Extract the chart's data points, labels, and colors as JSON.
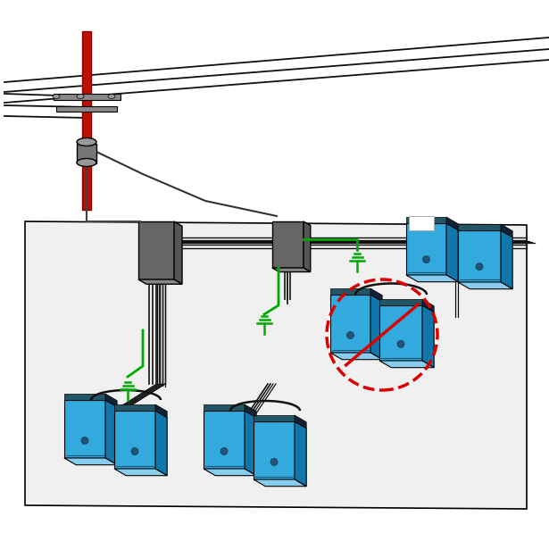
{
  "bg_color": "#ffffff",
  "pole_color": "#bb1100",
  "box_gray": "#666666",
  "box_gray_top": "#888888",
  "box_gray_side": "#555555",
  "chassis_front": "#33aadd",
  "chassis_right": "#1177aa",
  "chassis_top": "#88ccee",
  "chassis_foot": "#225566",
  "green_wire": "#00aa00",
  "red_no": "#dd0000",
  "wire_black": "#111111",
  "wire_dark": "#333333",
  "floor_fill": "#f0f0f0",
  "floor_edge": "#000000",
  "xarm_color": "#888888",
  "transformer_body": "#777777",
  "transformer_top": "#999999"
}
